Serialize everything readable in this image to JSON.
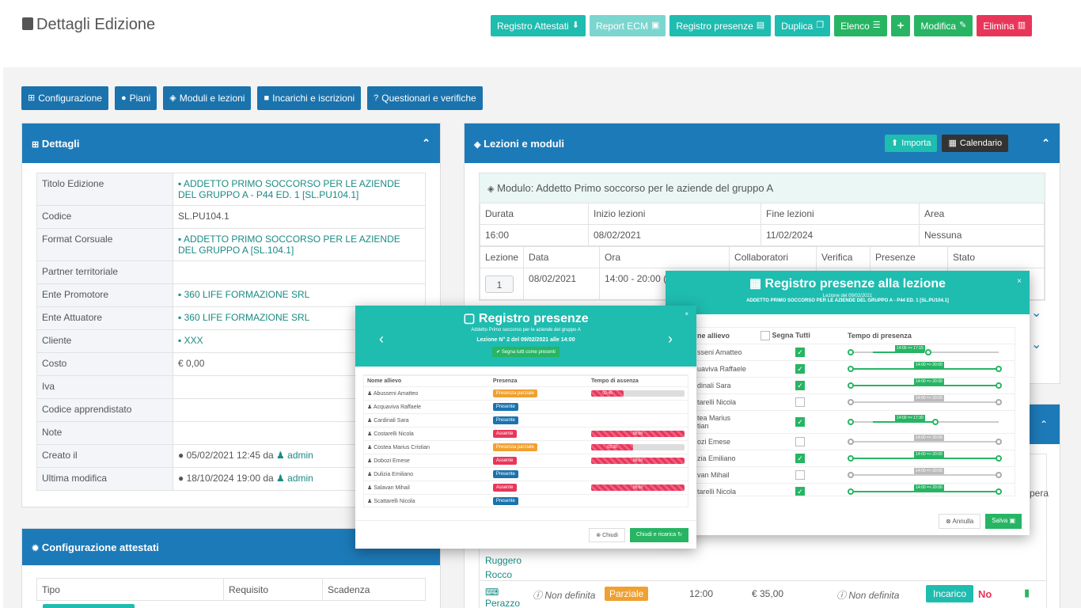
{
  "header": {
    "title": "Dettagli Edizione"
  },
  "toolbar": {
    "registro_attestati": "Registro Attestati",
    "report_ecm": "Report ECM",
    "registro_presenze": "Registro presenze",
    "duplica": "Duplica",
    "elenco": "Elenco",
    "add": "+",
    "modifica": "Modifica",
    "elimina": "Elimina"
  },
  "tabs": [
    "Configurazione",
    "Piani",
    "Moduli e lezioni",
    "Incarichi e iscrizioni",
    "Questionari e verifiche"
  ],
  "dettagli": {
    "title": "Dettagli",
    "rows": [
      {
        "k": "Titolo Edizione",
        "v": "ADDETTO PRIMO SOCCORSO PER LE AZIENDE DEL GRUPPO A - P44 ED. 1 [SL.PU104.1]"
      },
      {
        "k": "Codice",
        "v": "SL.PU104.1"
      },
      {
        "k": "Format Corsuale",
        "v": "ADDETTO PRIMO SOCCORSO PER LE AZIENDE DEL GRUPPO A [SL.104.1]"
      },
      {
        "k": "Partner territoriale",
        "v": ""
      },
      {
        "k": "Ente Promotore",
        "v": "360 LIFE FORMAZIONE SRL"
      },
      {
        "k": "Ente Attuatore",
        "v": "360 LIFE FORMAZIONE SRL"
      },
      {
        "k": "Cliente",
        "v": "XXX"
      },
      {
        "k": "Costo",
        "v": "€ 0,00"
      },
      {
        "k": "Iva",
        "v": ""
      },
      {
        "k": "Codice apprendistato",
        "v": ""
      },
      {
        "k": "Note",
        "v": ""
      },
      {
        "k": "Creato il",
        "v": "05/02/2021 12:45  da",
        "user": "admin"
      },
      {
        "k": "Ultima modifica",
        "v": "18/10/2024 19:00 da",
        "user": "admin"
      }
    ]
  },
  "attestati": {
    "title": "Configurazione attestati",
    "col_tipo": "Tipo",
    "col_requisito": "Requisito",
    "col_scadenza": "Scadenza"
  },
  "lezioni": {
    "title": "Lezioni e moduli",
    "importa": "Importa",
    "calendario": "Calendario",
    "modulo": "Modulo: Addetto Primo soccorso per le aziende del gruppo A",
    "h1": [
      "Durata",
      "Inizio lezioni",
      "Fine lezioni",
      "Area"
    ],
    "v1": [
      "16:00",
      "08/02/2021",
      "11/02/2024",
      "Nessuna"
    ],
    "h2": [
      "Lezione",
      "Data",
      "Ora",
      "Collaboratori",
      "Verifica",
      "Presenze",
      "Stato"
    ],
    "r1": {
      "n": "1",
      "data": "08/02/2021",
      "ora": "14:00 - 20:00 ("
    }
  },
  "incarichi": {
    "name1": "Ruggero",
    "name2": "Rocco",
    "name3": "Perazzo",
    "non_definita": "Non definita",
    "parziale": "Parziale",
    "ora": "12:00",
    "costo": "€ 35,00",
    "non_definita2": "Non definita",
    "incarico": "Incarico",
    "no": "No",
    "opera": "pera"
  },
  "modal_left": {
    "title": "Registro presenze",
    "sub": "Addetto Primo soccorso per le aziende del gruppo A",
    "lezione": "Lezione N° 2 del 09/02/2021 alle 14:00",
    "segna": "Segna tutti come presenti",
    "cols": [
      "Nome allievo",
      "Presenza",
      "Tempo di assenza"
    ],
    "rows": [
      {
        "n": "Abusseni Amatteo",
        "p": "Presenza parziale",
        "c": "#f0a030",
        "t": "02:45",
        "f": 0.35
      },
      {
        "n": "Acquaviva Raffaele",
        "p": "Presente",
        "c": "#1a73ad",
        "t": "",
        "f": 0
      },
      {
        "n": "Cardinali Sara",
        "p": "Presente",
        "c": "#1a73ad",
        "t": "",
        "f": 0
      },
      {
        "n": "Costarelli Nicola",
        "p": "Assente",
        "c": "#e8365a",
        "t": "06:00",
        "f": 1
      },
      {
        "n": "Costea Marius Cristian",
        "p": "Presenza parziale",
        "c": "#f0a030",
        "t": "03:30",
        "f": 0.45
      },
      {
        "n": "Dobozi Emese",
        "p": "Assente",
        "c": "#e8365a",
        "t": "06:00",
        "f": 1
      },
      {
        "n": "Dulizia Emiliano",
        "p": "Presente",
        "c": "#1a73ad",
        "t": "",
        "f": 0
      },
      {
        "n": "Salavan Mihail",
        "p": "Assente",
        "c": "#e8365a",
        "t": "06:00",
        "f": 1
      },
      {
        "n": "Scattarelli Nicola",
        "p": "Presente",
        "c": "#1a73ad",
        "t": "",
        "f": 0
      }
    ],
    "chiudi": "Chiudi",
    "chiudi_ricarica": "Chiudi e ricarica"
  },
  "modal_right": {
    "title": "Registro presenze alla lezione",
    "sub1": "Lezione del 09/02/2021",
    "sub2": "ADDETTO PRIMO SOCCORSO PER LE AZIENDE DEL GRUPPO A - P44 ED. 1 [SL.PU104.1]",
    "cols": [
      "ne allievo",
      "Segna Tutti",
      "Tempo di presenza"
    ],
    "rows": [
      {
        "n": "sseni Amatteo",
        "on": true,
        "lab": "14:00 => 17:15",
        "full": false,
        "s": 0.15,
        "e": 0.5
      },
      {
        "n": "uaviva Raffaele",
        "on": true,
        "lab": "14:00 => 20:00",
        "full": true,
        "s": 0,
        "e": 1
      },
      {
        "n": "dinali Sara",
        "on": true,
        "lab": "14:00 => 20:00",
        "full": true,
        "s": 0,
        "e": 1
      },
      {
        "n": "tarelli Nicola",
        "on": false,
        "lab": "14:00 => 20:00",
        "full": true,
        "s": 0,
        "e": 1
      },
      {
        "n": "tea Marius",
        "n2": "tian",
        "on": true,
        "lab": "14:00 => 17:30",
        "full": false,
        "s": 0.15,
        "e": 0.55
      },
      {
        "n": "ozi Emese",
        "on": false,
        "lab": "14:00 => 20:00",
        "full": true,
        "s": 0,
        "e": 1
      },
      {
        "n": "zia Emiliano",
        "on": true,
        "lab": "14:00 => 20:00",
        "full": true,
        "s": 0,
        "e": 1
      },
      {
        "n": "van Mihail",
        "on": false,
        "lab": "14:00 => 20:00",
        "full": true,
        "s": 0,
        "e": 1
      },
      {
        "n": "tarelli Nicola",
        "on": true,
        "lab": "14:00 => 20:00",
        "full": true,
        "s": 0,
        "e": 1
      }
    ],
    "annulla": "Annulla",
    "salva": "Salva"
  }
}
